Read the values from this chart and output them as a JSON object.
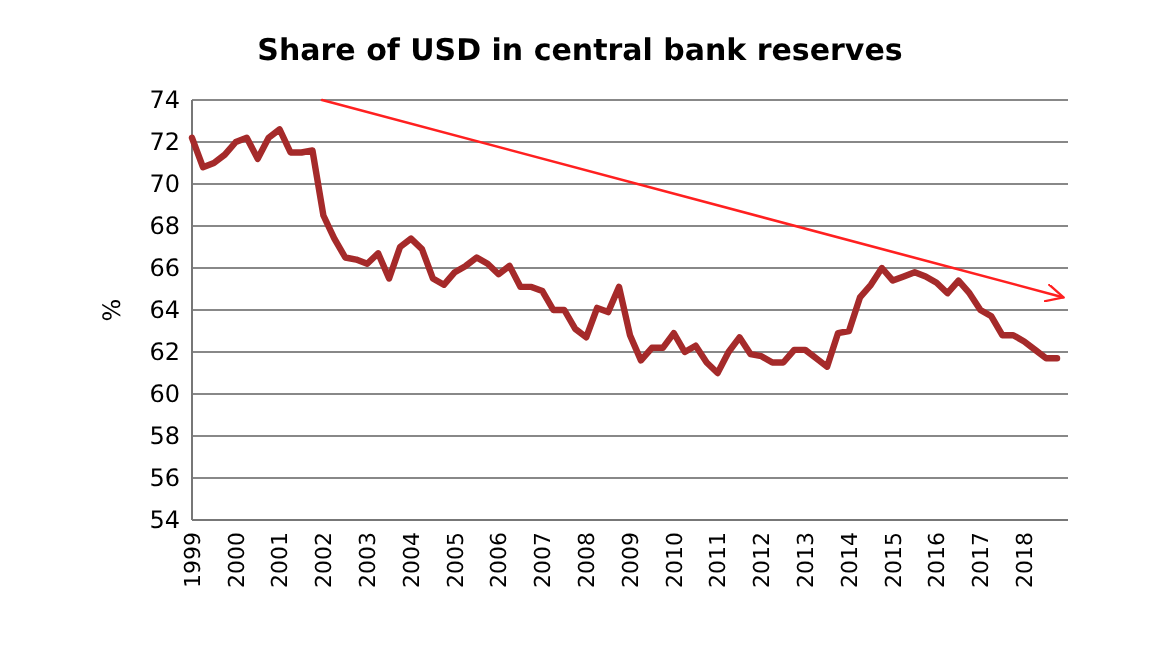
{
  "chart_data": {
    "type": "line",
    "title": "Share of USD in central bank reserves",
    "ylabel": "%",
    "xlim": [
      1999,
      2019
    ],
    "xticks": [
      1999,
      2000,
      2001,
      2002,
      2003,
      2004,
      2005,
      2006,
      2007,
      2008,
      2009,
      2010,
      2011,
      2012,
      2013,
      2014,
      2015,
      2016,
      2017,
      2018
    ],
    "ylim": [
      54,
      74
    ],
    "yticks": [
      54,
      56,
      58,
      60,
      62,
      64,
      66,
      68,
      70,
      72,
      74
    ],
    "grid": "y",
    "series": [
      {
        "color": "#a52a2a",
        "x": [
          1999,
          1999.25,
          1999.5,
          1999.75,
          2000,
          2000.25,
          2000.5,
          2000.75,
          2001,
          2001.25,
          2001.5,
          2001.75,
          2002,
          2002.25,
          2002.5,
          2002.75,
          2003,
          2003.25,
          2003.5,
          2003.75,
          2004,
          2004.25,
          2004.5,
          2004.75,
          2005,
          2005.25,
          2005.5,
          2005.75,
          2006,
          2006.25,
          2006.5,
          2006.75,
          2007,
          2007.25,
          2007.5,
          2007.75,
          2008,
          2008.25,
          2008.5,
          2008.75,
          2009,
          2009.25,
          2009.5,
          2009.75,
          2010,
          2010.25,
          2010.5,
          2010.75,
          2011,
          2011.25,
          2011.5,
          2011.75,
          2012,
          2012.25,
          2012.5,
          2012.75,
          2013,
          2013.25,
          2013.5,
          2013.75,
          2014,
          2014.25,
          2014.5,
          2014.75,
          2015,
          2015.25,
          2015.5,
          2015.75,
          2016,
          2016.25,
          2016.5,
          2016.75,
          2017,
          2017.25,
          2017.5,
          2017.75,
          2018,
          2018.25,
          2018.5,
          2018.75
        ],
        "values": [
          72.2,
          70.8,
          71.0,
          71.4,
          72.0,
          72.2,
          71.2,
          72.2,
          72.6,
          71.5,
          71.5,
          71.6,
          68.5,
          67.4,
          66.5,
          66.4,
          66.2,
          66.7,
          65.5,
          67.0,
          67.4,
          66.9,
          65.5,
          65.2,
          65.8,
          66.1,
          66.5,
          66.2,
          65.7,
          66.1,
          65.1,
          65.1,
          64.9,
          64.0,
          64.0,
          63.1,
          62.7,
          64.1,
          63.9,
          65.1,
          62.8,
          61.6,
          62.2,
          62.2,
          62.9,
          62.0,
          62.3,
          61.5,
          61.0,
          62.0,
          62.7,
          61.9,
          61.8,
          61.5,
          61.5,
          62.1,
          62.1,
          61.7,
          61.3,
          62.9,
          63.0,
          64.6,
          65.2,
          66.0,
          65.4,
          65.6,
          65.8,
          65.6,
          65.3,
          64.8,
          65.4,
          64.8,
          64.0,
          63.7,
          62.8,
          62.8,
          62.5,
          62.1,
          61.7,
          61.7
        ]
      },
      {
        "type": "line",
        "color": "#ff2020",
        "x": [
          2001.97,
          2018.9
        ],
        "values": [
          74,
          64.6
        ]
      }
    ]
  }
}
